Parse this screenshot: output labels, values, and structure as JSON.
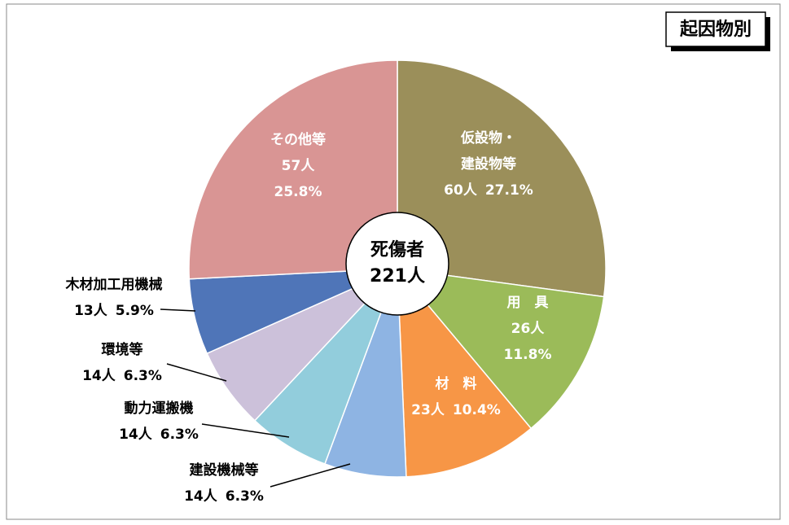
{
  "chart_data": {
    "type": "pie",
    "legend_title": "起因物別",
    "center_label": [
      "死傷者",
      "221人"
    ],
    "categories": [
      [
        "仮設物・",
        "建設物等"
      ],
      [
        "用　具"
      ],
      [
        "材　料"
      ],
      [
        "建設機械等"
      ],
      [
        "動力運搬機"
      ],
      [
        "環境等"
      ],
      [
        "木材加工用機械"
      ],
      [
        "その他等"
      ]
    ],
    "values": [
      60,
      26,
      23,
      14,
      14,
      14,
      13,
      57
    ],
    "value_labels": [
      "60人",
      "26人",
      "23人",
      "14人",
      "14人",
      "14人",
      "13人",
      "57人"
    ],
    "percent_labels": [
      "27.1%",
      "11.8%",
      "10.4%",
      "6.3%",
      "6.3%",
      "6.3%",
      "5.9%",
      "25.8%"
    ],
    "colors": [
      "#9b8f5a",
      "#9bbb59",
      "#f79646",
      "#8eb4e3",
      "#92cddc",
      "#ccc1da",
      "#4f75b8",
      "#d99594"
    ]
  }
}
